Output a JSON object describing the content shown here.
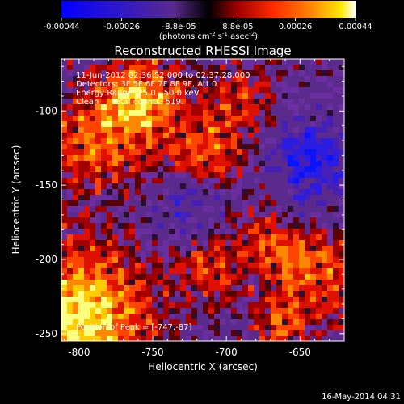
{
  "colorbar": {
    "ticks": [
      "-0.00044",
      "-0.00026",
      "-8.8e-05",
      "8.8e-05",
      "0.00026",
      "0.00044"
    ],
    "tick_values": [
      -0.00044,
      -0.00026,
      -8.8e-05,
      8.8e-05,
      0.00026,
      0.00044
    ],
    "range": [
      -0.00044,
      0.00044
    ],
    "units_main": "(photons cm",
    "units_sup1": "-2",
    "units_mid1": " s",
    "units_sup2": "-1",
    "units_mid2": " asec",
    "units_sup3": "-2",
    "units_end": ")",
    "colors": [
      "#0000ff",
      "#3a18c0",
      "#5a2a8a",
      "#000000",
      "#8a0000",
      "#ff2000",
      "#ff7000",
      "#ffe000",
      "#ffffff"
    ]
  },
  "chart_data": {
    "type": "heatmap",
    "title": "Reconstructed RHESSI Image",
    "xlabel": "Heliocentric X (arcsec)",
    "ylabel": "Heliocentric Y (arcsec)",
    "xlim": [
      -812,
      -620
    ],
    "ylim": [
      -255,
      -65
    ],
    "xticks": [
      -800,
      -750,
      -700,
      -650
    ],
    "yticks": [
      -100,
      -150,
      -200,
      -250
    ],
    "xtick_labels": [
      "-800",
      "-750",
      "-700",
      "-650"
    ],
    "ytick_labels": [
      "-100",
      "-150",
      "-200",
      "-250"
    ],
    "annotations": [
      "11-Jun-2012 02:36:52.000 to 02:37:28.000",
      "Detectors: 3F 5F 6F 7F 8F 9F, Att 0",
      "Energy Range: 25.0 - 50.0 keV",
      "Clean     Total counts: 519."
    ],
    "peak_label": "Position of Peak = [-747,-87]",
    "peak": [
      -747,
      -87
    ]
  },
  "footer": {
    "timestamp": "16-May-2014 04:31"
  }
}
